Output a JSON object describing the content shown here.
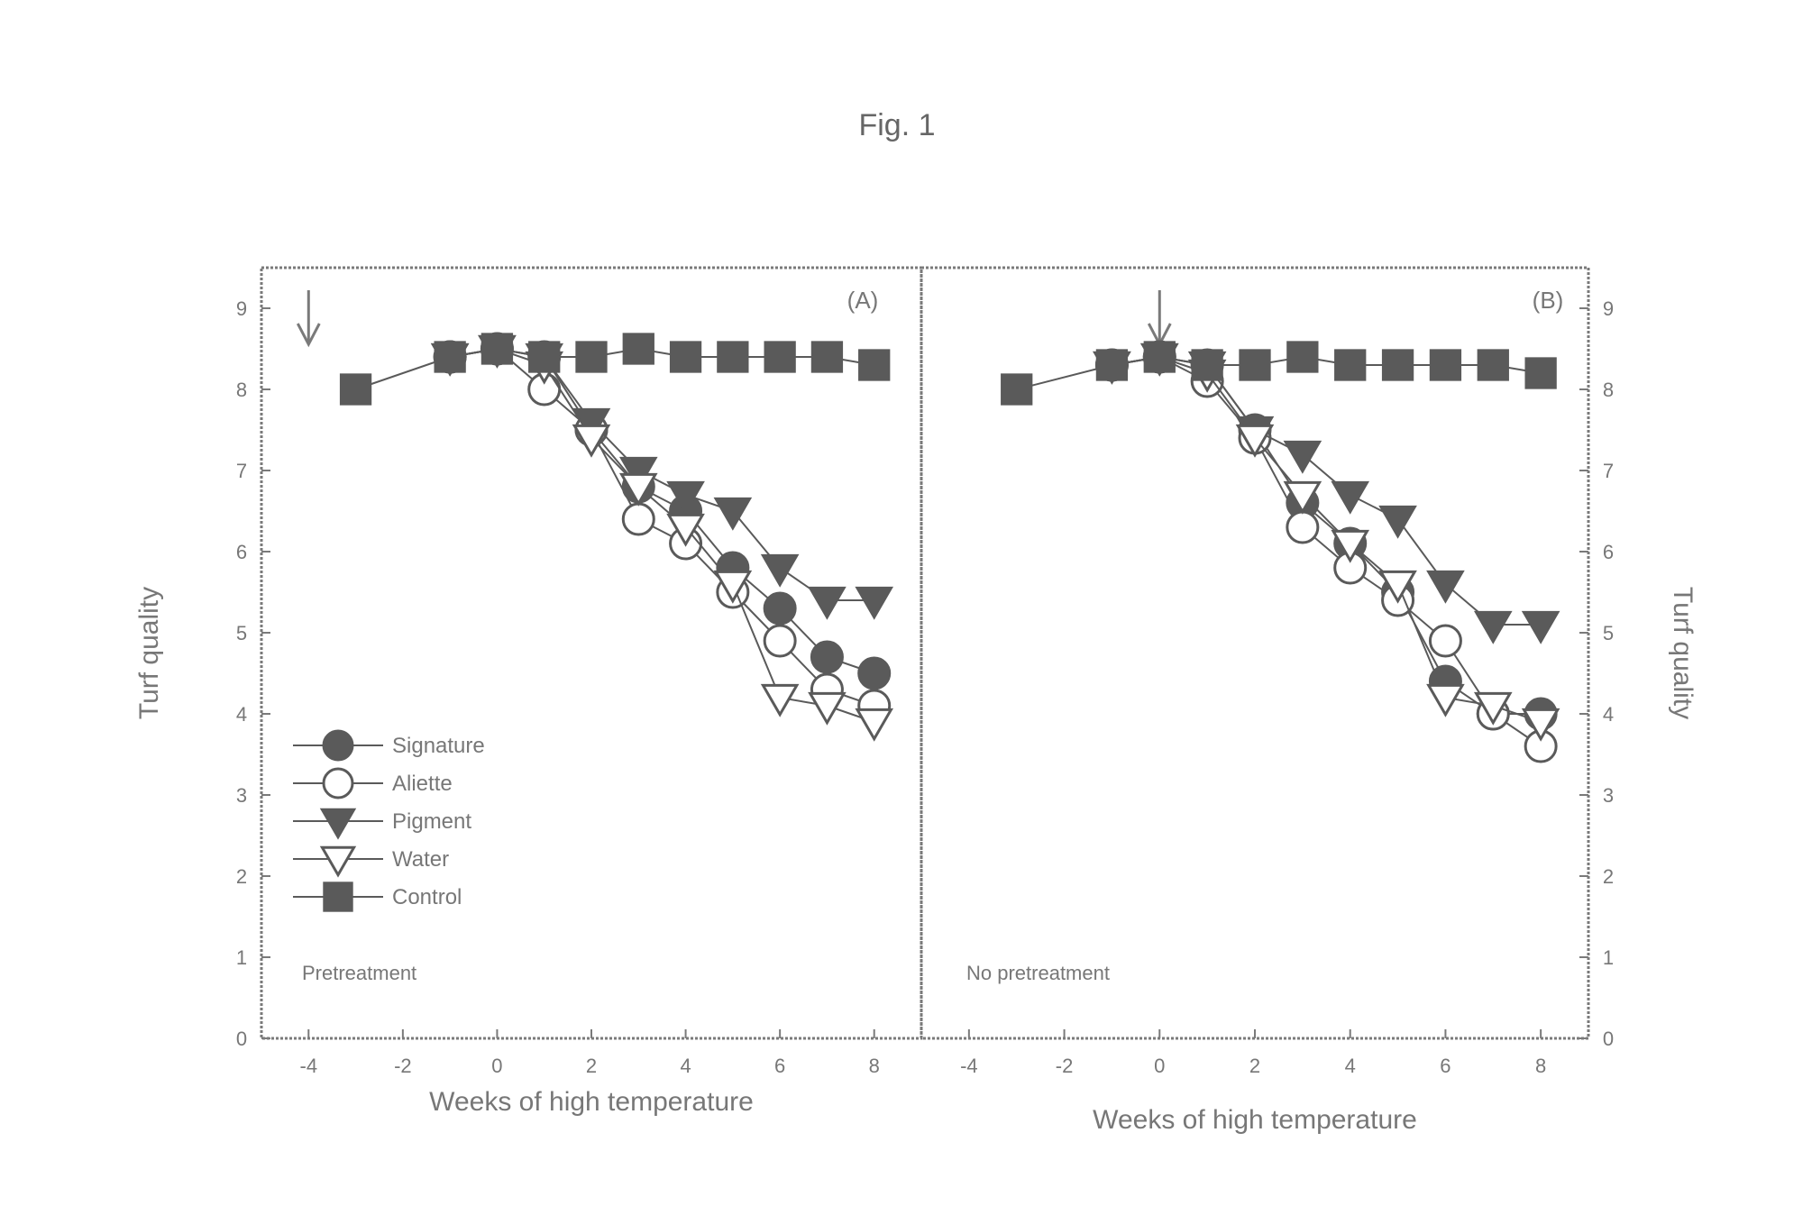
{
  "figure": {
    "title": "Fig. 1"
  },
  "chart_data": [
    {
      "type": "line",
      "panel": "(A)",
      "note": "Pretreatment",
      "xlabel": "Weeks of high temperature",
      "ylabel": "Turf quality",
      "xlim": [
        -5,
        9
      ],
      "ylim": [
        0,
        9.5
      ],
      "x_ticks": [
        -4,
        -2,
        0,
        2,
        4,
        6,
        8
      ],
      "x_tick_labels": [
        "-4",
        "-2",
        "0",
        "2",
        "4",
        "6",
        "8"
      ],
      "y_ticks": [
        0,
        1,
        2,
        3,
        4,
        5,
        6,
        7,
        8,
        9
      ],
      "y_tick_labels": [
        "0",
        "1",
        "2",
        "3",
        "4",
        "5",
        "6",
        "7",
        "8",
        "9"
      ],
      "y_axis_side": "left",
      "arrow_at_x": -4,
      "legend_position": "lower-left",
      "grid": false,
      "series": [
        {
          "name": "Signature",
          "marker": "circle-filled",
          "x": [
            -1,
            0,
            1,
            2,
            3,
            4,
            5,
            6,
            7,
            8
          ],
          "y": [
            8.4,
            8.5,
            8.4,
            7.5,
            6.8,
            6.5,
            5.8,
            5.3,
            4.7,
            4.5
          ]
        },
        {
          "name": "Aliette",
          "marker": "circle-open",
          "x": [
            -1,
            0,
            1,
            2,
            3,
            4,
            5,
            6,
            7,
            8
          ],
          "y": [
            8.4,
            8.5,
            8.0,
            7.5,
            6.4,
            6.1,
            5.5,
            4.9,
            4.3,
            4.1
          ]
        },
        {
          "name": "Pigment",
          "marker": "triangle-down-filled",
          "x": [
            -1,
            0,
            1,
            2,
            3,
            4,
            5,
            6,
            7,
            8
          ],
          "y": [
            8.4,
            8.5,
            8.4,
            7.6,
            7.0,
            6.7,
            6.5,
            5.8,
            5.4,
            5.4
          ]
        },
        {
          "name": "Water",
          "marker": "triangle-down-open",
          "x": [
            -1,
            0,
            1,
            2,
            3,
            4,
            5,
            6,
            7,
            8
          ],
          "y": [
            8.4,
            8.5,
            8.3,
            7.4,
            6.8,
            6.3,
            5.6,
            4.2,
            4.1,
            3.9
          ]
        },
        {
          "name": "Control",
          "marker": "square-filled",
          "x": [
            -3,
            -1,
            0,
            1,
            2,
            3,
            4,
            5,
            6,
            7,
            8
          ],
          "y": [
            8.0,
            8.4,
            8.5,
            8.4,
            8.4,
            8.5,
            8.4,
            8.4,
            8.4,
            8.4,
            8.3
          ]
        }
      ]
    },
    {
      "type": "line",
      "panel": "(B)",
      "note": "No pretreatment",
      "xlabel": "Weeks of high temperature",
      "ylabel": "Turf quality",
      "xlim": [
        -5,
        9
      ],
      "ylim": [
        0,
        9.5
      ],
      "x_ticks": [
        -4,
        -2,
        0,
        2,
        4,
        6,
        8
      ],
      "x_tick_labels": [
        "-4",
        "-2",
        "0",
        "2",
        "4",
        "6",
        "8"
      ],
      "y_ticks": [
        0,
        1,
        2,
        3,
        4,
        5,
        6,
        7,
        8,
        9
      ],
      "y_tick_labels": [
        "0",
        "1",
        "2",
        "3",
        "4",
        "5",
        "6",
        "7",
        "8",
        "9"
      ],
      "y_axis_side": "right",
      "arrow_at_x": 0,
      "grid": false,
      "series": [
        {
          "name": "Signature",
          "marker": "circle-filled",
          "x": [
            -1,
            0,
            1,
            2,
            3,
            4,
            5,
            6,
            7,
            8
          ],
          "y": [
            8.3,
            8.4,
            8.3,
            7.5,
            6.6,
            6.1,
            5.5,
            4.4,
            4.0,
            4.0
          ]
        },
        {
          "name": "Aliette",
          "marker": "circle-open",
          "x": [
            -1,
            0,
            1,
            2,
            3,
            4,
            5,
            6,
            7,
            8
          ],
          "y": [
            8.3,
            8.4,
            8.1,
            7.4,
            6.3,
            5.8,
            5.4,
            4.9,
            4.0,
            3.6
          ]
        },
        {
          "name": "Pigment",
          "marker": "triangle-down-filled",
          "x": [
            -1,
            0,
            1,
            2,
            3,
            4,
            5,
            6,
            7,
            8
          ],
          "y": [
            8.3,
            8.4,
            8.3,
            7.5,
            7.2,
            6.7,
            6.4,
            5.6,
            5.1,
            5.1
          ]
        },
        {
          "name": "Water",
          "marker": "triangle-down-open",
          "x": [
            -1,
            0,
            1,
            2,
            3,
            4,
            5,
            6,
            7,
            8
          ],
          "y": [
            8.3,
            8.4,
            8.2,
            7.4,
            6.7,
            6.1,
            5.6,
            4.2,
            4.1,
            3.9
          ]
        },
        {
          "name": "Control",
          "marker": "square-filled",
          "x": [
            -3,
            -1,
            0,
            1,
            2,
            3,
            4,
            5,
            6,
            7,
            8
          ],
          "y": [
            8.0,
            8.3,
            8.4,
            8.3,
            8.3,
            8.4,
            8.3,
            8.3,
            8.3,
            8.3,
            8.2
          ]
        }
      ]
    }
  ]
}
